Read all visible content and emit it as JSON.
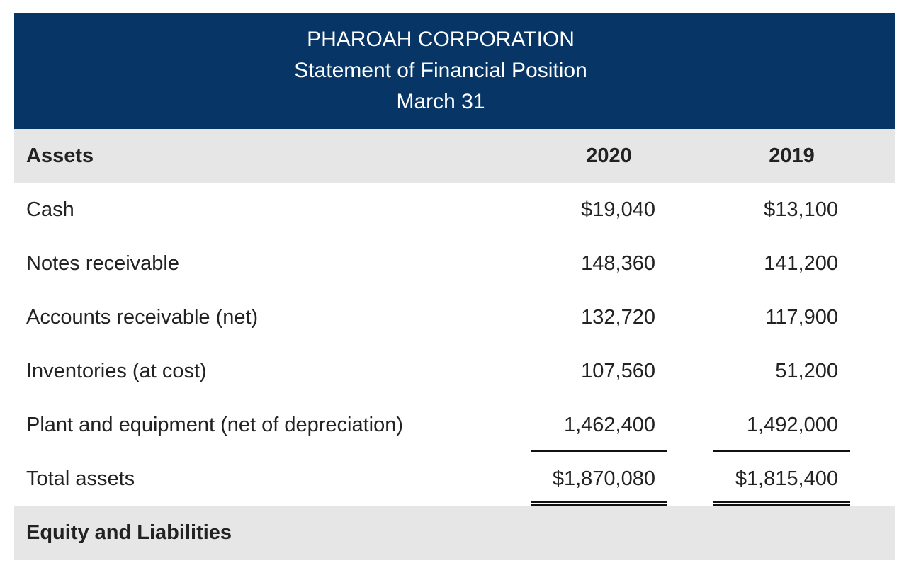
{
  "header": {
    "company": "PHAROAH CORPORATION",
    "statement": "Statement of Financial Position",
    "date": "March 31"
  },
  "table": {
    "section1": "Assets",
    "col_2020": "2020",
    "col_2019": "2019",
    "rows": [
      {
        "label": "Cash",
        "v2020": "$19,040",
        "v2019": "$13,100"
      },
      {
        "label": "Notes receivable",
        "v2020": "148,360",
        "v2019": "141,200"
      },
      {
        "label": "Accounts receivable (net)",
        "v2020": "132,720",
        "v2019": "117,900"
      },
      {
        "label": "Inventories (at cost)",
        "v2020": "107,560",
        "v2019": "51,200"
      },
      {
        "label": "Plant and equipment (net of depreciation)",
        "v2020": "1,462,400",
        "v2019": "1,492,000"
      },
      {
        "label": "Total assets",
        "v2020": "$1,870,080",
        "v2019": "$1,815,400"
      }
    ],
    "section2": "Equity and Liabilities"
  },
  "colors": {
    "banner": "#063566",
    "section_band": "#e6e6e6"
  }
}
